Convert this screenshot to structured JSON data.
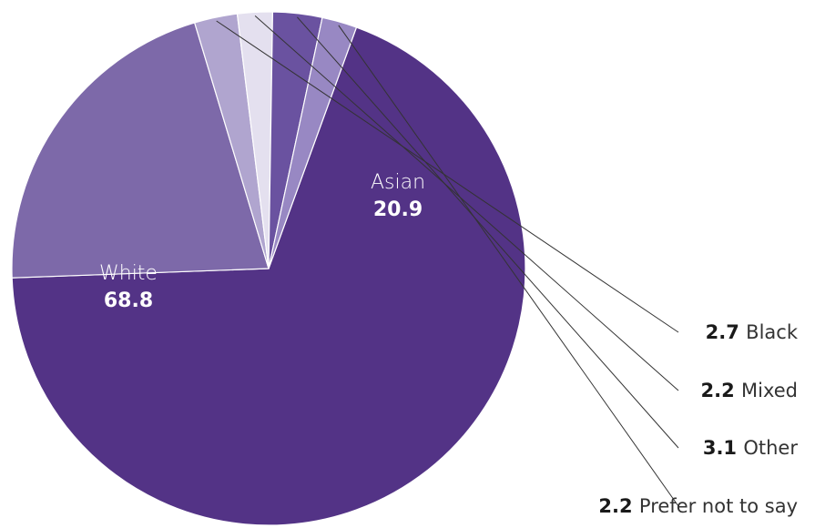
{
  "chart_data": {
    "type": "pie",
    "slices": [
      {
        "label": "White",
        "value": 68.8,
        "value_label": "68.8",
        "color": "#533386",
        "label_position": "inside"
      },
      {
        "label": "Asian",
        "value": 20.9,
        "value_label": "20.9",
        "color": "#7d69a9",
        "label_position": "inside"
      },
      {
        "label": "Black",
        "value": 2.7,
        "value_label": "2.7",
        "color": "#b0a5cf",
        "label_position": "outside"
      },
      {
        "label": "Mixed",
        "value": 2.2,
        "value_label": "2.2",
        "color": "#e4e0ef",
        "label_position": "outside"
      },
      {
        "label": "Other",
        "value": 3.1,
        "value_label": "3.1",
        "color": "#6a52a0",
        "label_position": "outside"
      },
      {
        "label": "Prefer not to say",
        "value": 2.2,
        "value_label": "2.2",
        "color": "#9888c3",
        "label_position": "outside"
      }
    ],
    "start_angle_deg": 20,
    "direction": "clockwise",
    "legend": "none"
  }
}
